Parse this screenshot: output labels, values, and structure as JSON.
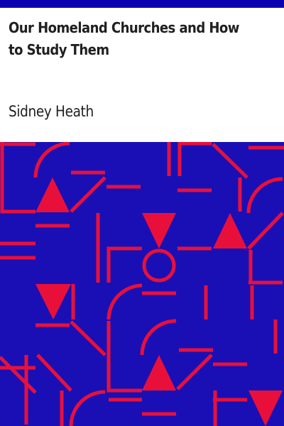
{
  "book": {
    "title": "Our Homeland Churches and How to Study Them",
    "author": "Sidney Heath"
  },
  "colors": {
    "bar": "#0b00b0",
    "pattern_background": "#1a0fb5",
    "pattern_foreground": "#e8103a",
    "text": "#202020",
    "page": "#ffffff"
  },
  "cover_pattern": {
    "description_icon": "geometric-cover-pattern"
  }
}
